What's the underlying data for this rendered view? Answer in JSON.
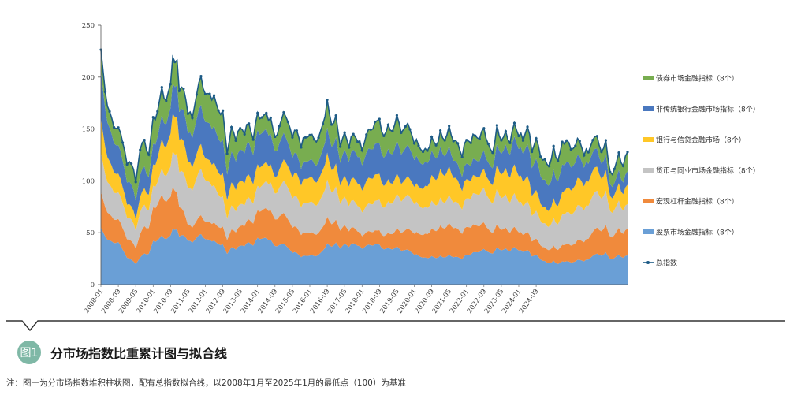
{
  "chart_data": {
    "type": "area",
    "stacked": true,
    "title": "分市场指数比重累计图与拟合线",
    "xlabel": "",
    "ylabel": "",
    "ylim": [
      0,
      250
    ],
    "yticks": [
      0,
      50,
      100,
      150,
      200,
      250
    ],
    "xtick_labels": [
      "2008-01",
      "2008-09",
      "2009-05",
      "2010-01",
      "2010-09",
      "2011-05",
      "2012-01",
      "2012-09",
      "2013-05",
      "2014-01",
      "2014-09",
      "2015-05",
      "2016-01",
      "2016-09",
      "2017-05",
      "2018-01",
      "2018-09",
      "2019-05",
      "2020-01",
      "2020-09",
      "2021-05",
      "2022-01",
      "2022-09",
      "2023-05",
      "2024-01",
      "2024-09"
    ],
    "total_anchors": [
      [
        0,
        225
      ],
      [
        2,
        185
      ],
      [
        4,
        165
      ],
      [
        6,
        153
      ],
      [
        8,
        150
      ],
      [
        10,
        140
      ],
      [
        12,
        115
      ],
      [
        14,
        120
      ],
      [
        16,
        98
      ],
      [
        18,
        132
      ],
      [
        20,
        138
      ],
      [
        22,
        125
      ],
      [
        24,
        160
      ],
      [
        26,
        165
      ],
      [
        28,
        190
      ],
      [
        30,
        175
      ],
      [
        32,
        195
      ],
      [
        33,
        220
      ],
      [
        34,
        213
      ],
      [
        35,
        215
      ],
      [
        36,
        190
      ],
      [
        38,
        188
      ],
      [
        40,
        168
      ],
      [
        42,
        160
      ],
      [
        44,
        185
      ],
      [
        46,
        200
      ],
      [
        48,
        183
      ],
      [
        50,
        183
      ],
      [
        52,
        180
      ],
      [
        54,
        168
      ],
      [
        56,
        165
      ],
      [
        58,
        128
      ],
      [
        60,
        150
      ],
      [
        62,
        142
      ],
      [
        64,
        150
      ],
      [
        66,
        148
      ],
      [
        68,
        155
      ],
      [
        70,
        141
      ],
      [
        72,
        165
      ],
      [
        74,
        160
      ],
      [
        76,
        165
      ],
      [
        78,
        158
      ],
      [
        80,
        143
      ],
      [
        82,
        150
      ],
      [
        84,
        168
      ],
      [
        86,
        155
      ],
      [
        88,
        145
      ],
      [
        90,
        148
      ],
      [
        92,
        135
      ],
      [
        94,
        142
      ],
      [
        96,
        145
      ],
      [
        98,
        140
      ],
      [
        100,
        140
      ],
      [
        102,
        155
      ],
      [
        104,
        175
      ],
      [
        106,
        155
      ],
      [
        108,
        160
      ],
      [
        110,
        135
      ],
      [
        112,
        145
      ],
      [
        114,
        135
      ],
      [
        116,
        145
      ],
      [
        118,
        140
      ],
      [
        120,
        130
      ],
      [
        122,
        145
      ],
      [
        124,
        150
      ],
      [
        126,
        155
      ],
      [
        128,
        160
      ],
      [
        130,
        140
      ],
      [
        132,
        155
      ],
      [
        134,
        145
      ],
      [
        136,
        165
      ],
      [
        138,
        145
      ],
      [
        140,
        155
      ],
      [
        142,
        150
      ],
      [
        144,
        138
      ],
      [
        146,
        135
      ],
      [
        148,
        128
      ],
      [
        150,
        130
      ],
      [
        152,
        140
      ],
      [
        154,
        135
      ],
      [
        156,
        145
      ],
      [
        158,
        140
      ],
      [
        160,
        150
      ],
      [
        162,
        140
      ],
      [
        164,
        135
      ],
      [
        166,
        125
      ],
      [
        168,
        140
      ],
      [
        170,
        138
      ],
      [
        172,
        145
      ],
      [
        174,
        140
      ],
      [
        176,
        152
      ],
      [
        178,
        133
      ],
      [
        180,
        128
      ],
      [
        182,
        150
      ],
      [
        184,
        140
      ],
      [
        186,
        145
      ],
      [
        188,
        138
      ],
      [
        190,
        155
      ],
      [
        192,
        145
      ],
      [
        194,
        140
      ],
      [
        196,
        153
      ],
      [
        198,
        130
      ],
      [
        200,
        140
      ],
      [
        202,
        125
      ],
      [
        204,
        118
      ],
      [
        206,
        115
      ],
      [
        208,
        130
      ],
      [
        210,
        120
      ],
      [
        212,
        135
      ],
      [
        214,
        140
      ],
      [
        216,
        130
      ],
      [
        218,
        135
      ],
      [
        220,
        140
      ],
      [
        222,
        125
      ],
      [
        224,
        130
      ],
      [
        226,
        138
      ],
      [
        228,
        145
      ],
      [
        230,
        125
      ],
      [
        232,
        140
      ],
      [
        234,
        105
      ],
      [
        236,
        112
      ],
      [
        238,
        125
      ],
      [
        240,
        115
      ],
      [
        242,
        128
      ]
    ],
    "base_shares": {
      "stock": 0.27,
      "macro": 0.12,
      "money": 0.16,
      "bank": 0.13,
      "nonbank": 0.18,
      "bond": 0.14
    },
    "series": [
      {
        "name": "股票市场金融指标（8个）",
        "color": "#6a9fd6"
      },
      {
        "name": "宏观杠杆金融指标（8个）",
        "color": "#f08a3c"
      },
      {
        "name": "货币与同业市场金融指标（8个）",
        "color": "#c4c4c4"
      },
      {
        "name": "银行与信贷金融市场（8个）",
        "color": "#ffc727"
      },
      {
        "name": "非传统银行金融市场指标（8个）",
        "color": "#4a78bf"
      },
      {
        "name": "债券市场金融指标（8个）",
        "color": "#78ad50"
      },
      {
        "name": "总指数",
        "color": "#1d5b86"
      }
    ]
  },
  "caption": {
    "badge": "图1",
    "title": "分市场指数比重累计图与拟合线",
    "note": "注：图一为分市场指数堆积柱状图，配有总指数拟合线，以2008年1月至2025年1月的最低点（100）为基准"
  }
}
